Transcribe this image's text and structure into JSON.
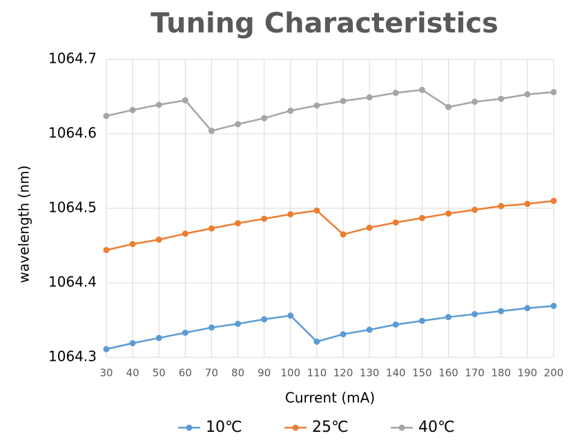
{
  "chart_data": {
    "type": "line",
    "title": "Tuning Characteristics",
    "x_label": "Current (mA)",
    "y_label": "wavelength (nm)",
    "x": [
      30,
      40,
      50,
      60,
      70,
      80,
      90,
      100,
      110,
      120,
      130,
      140,
      150,
      160,
      170,
      180,
      190,
      200
    ],
    "series": [
      {
        "name": "10℃",
        "color": "#5b9bd5",
        "values": [
          1064.311,
          1064.319,
          1064.326,
          1064.333,
          1064.34,
          1064.345,
          1064.351,
          1064.356,
          1064.321,
          1064.331,
          1064.337,
          1064.344,
          1064.349,
          1064.354,
          1064.358,
          1064.362,
          1064.366,
          1064.369
        ]
      },
      {
        "name": "25℃",
        "color": "#ed7d31",
        "values": [
          1064.444,
          1064.452,
          1064.458,
          1064.466,
          1064.473,
          1064.48,
          1064.486,
          1064.492,
          1064.497,
          1064.465,
          1064.474,
          1064.481,
          1064.487,
          1064.493,
          1064.498,
          1064.503,
          1064.506,
          1064.51
        ]
      },
      {
        "name": "40℃",
        "color": "#a5a5a5",
        "values": [
          1064.624,
          1064.632,
          1064.639,
          1064.645,
          1064.604,
          1064.613,
          1064.621,
          1064.631,
          1064.638,
          1064.644,
          1064.649,
          1064.655,
          1064.659,
          1064.636,
          1064.643,
          1064.647,
          1064.653,
          1064.656
        ]
      }
    ],
    "xlim": [
      30,
      200
    ],
    "xticks": [
      30,
      40,
      50,
      60,
      70,
      80,
      90,
      100,
      110,
      120,
      130,
      140,
      150,
      160,
      170,
      180,
      190,
      200
    ],
    "ylim": [
      1064.3,
      1064.7
    ],
    "yticks": [
      1064.3,
      1064.4,
      1064.5,
      1064.6,
      1064.7
    ],
    "grid": true,
    "legend": "bottom"
  }
}
